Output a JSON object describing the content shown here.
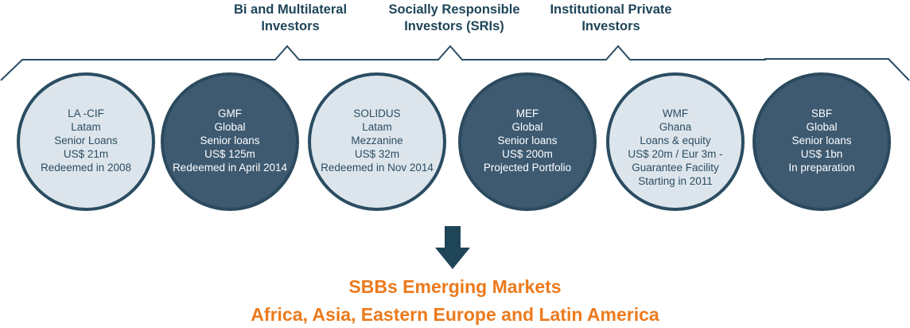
{
  "investors": [
    {
      "line1": "Bi and Multilateral",
      "line2": "Investors"
    },
    {
      "line1": "Socially Responsible",
      "line2": "Investors (SRIs)"
    },
    {
      "line1": "Institutional Private",
      "line2": "Investors"
    }
  ],
  "funds": [
    {
      "name": "LA -CIF",
      "line2": "Latam",
      "line3": "Senior Loans",
      "line4": "US$ 21m",
      "line5": "Redeemed in 2008",
      "line6": ""
    },
    {
      "name": "GMF",
      "line2": "Global",
      "line3": "Senior loans",
      "line4": "US$ 125m",
      "line5": "Redeemed in April 2014",
      "line6": ""
    },
    {
      "name": "SOLIDUS",
      "line2": "Latam",
      "line3": "Mezzanine",
      "line4": "US$ 32m",
      "line5": "Redeemed in Nov 2014",
      "line6": ""
    },
    {
      "name": "MEF",
      "line2": "Global",
      "line3": "Senior loans",
      "line4": "US$ 200m",
      "line5": "Projected Portfolio",
      "line6": ""
    },
    {
      "name": "WMF",
      "line2": "Ghana",
      "line3": "Loans & equity",
      "line4": "US$ 20m / Eur 3m -",
      "line5": "Guarantee Facility",
      "line6": "Starting in 2011"
    },
    {
      "name": "SBF",
      "line2": "Global",
      "line3": "Senior loans",
      "line4": "US$ 1bn",
      "line5": "In preparation",
      "line6": ""
    }
  ],
  "result": {
    "title": "SBBs Emerging Markets",
    "subtitle": "Africa, Asia, Eastern Europe and Latin America"
  },
  "colors": {
    "dark_blue": "#2b4d62",
    "light_circle": "#dde5ec",
    "dark_circle": "#3d5a71",
    "accent_orange": "#ec7a1c"
  }
}
